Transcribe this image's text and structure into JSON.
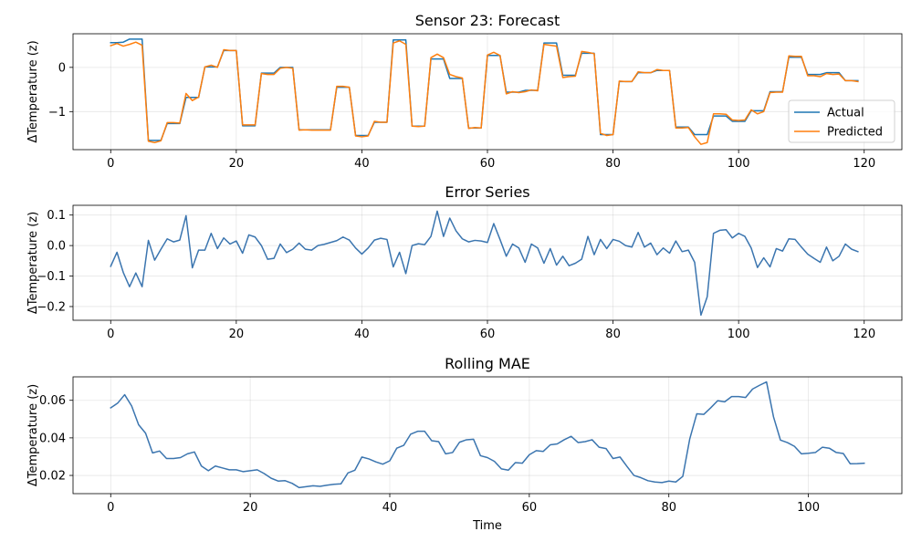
{
  "chart_data": [
    {
      "type": "line",
      "title": "Sensor 23: Forecast",
      "xlabel": "",
      "ylabel": "ΔTemperature (z)",
      "xlim": [
        -6,
        126
      ],
      "ylim": [
        -1.86,
        0.76
      ],
      "xticks": [
        0,
        20,
        40,
        60,
        80,
        100,
        120
      ],
      "yticks": [
        0,
        -1
      ],
      "ytick_labels": [
        "0",
        "−1"
      ],
      "grid": true,
      "legend": "lower-right",
      "series": [
        {
          "name": "Actual",
          "color": "#1f77b4",
          "values": [
            0.56,
            0.56,
            0.57,
            0.64,
            0.64,
            0.64,
            -1.65,
            -1.65,
            -1.65,
            -1.27,
            -1.27,
            -1.27,
            -0.68,
            -0.68,
            -0.68,
            0.01,
            0.01,
            0.01,
            0.38,
            0.38,
            0.38,
            -1.32,
            -1.32,
            -1.32,
            -0.13,
            -0.13,
            -0.13,
            0.0,
            0.0,
            0.0,
            -1.41,
            -1.41,
            -1.41,
            -1.41,
            -1.41,
            -1.41,
            -0.45,
            -0.45,
            -0.45,
            -1.54,
            -1.54,
            -1.54,
            -1.24,
            -1.24,
            -1.24,
            0.62,
            0.62,
            0.62,
            -1.33,
            -1.33,
            -1.33,
            0.19,
            0.19,
            0.19,
            -0.25,
            -0.25,
            -0.25,
            -1.37,
            -1.37,
            -1.37,
            0.27,
            0.27,
            0.27,
            -0.56,
            -0.56,
            -0.56,
            -0.52,
            -0.52,
            -0.52,
            0.55,
            0.55,
            0.55,
            -0.18,
            -0.18,
            -0.18,
            0.32,
            0.32,
            0.32,
            -1.52,
            -1.52,
            -1.52,
            -0.32,
            -0.32,
            -0.32,
            -0.12,
            -0.12,
            -0.12,
            -0.07,
            -0.07,
            -0.07,
            -1.35,
            -1.35,
            -1.35,
            -1.52,
            -1.52,
            -1.52,
            -1.1,
            -1.1,
            -1.1,
            -1.22,
            -1.22,
            -1.22,
            -0.98,
            -0.98,
            -0.98,
            -0.55,
            -0.55,
            -0.55,
            0.23,
            0.23,
            0.23,
            -0.16,
            -0.16,
            -0.16,
            -0.12,
            -0.12,
            -0.12,
            -0.3,
            -0.3,
            -0.3
          ]
        },
        {
          "name": "Predicted",
          "color": "#ff7f0e",
          "values": [
            0.49,
            0.54,
            0.48,
            0.52,
            0.57,
            0.5,
            -1.67,
            -1.7,
            -1.66,
            -1.25,
            -1.25,
            -1.26,
            -0.59,
            -0.75,
            -0.67,
            0.01,
            0.05,
            0.0,
            0.4,
            0.38,
            0.38,
            -1.3,
            -1.3,
            -1.3,
            -0.14,
            -0.16,
            -0.16,
            -0.02,
            0.0,
            -0.02,
            -1.42,
            -1.41,
            -1.42,
            -1.42,
            -1.42,
            -1.42,
            -0.43,
            -0.43,
            -0.45,
            -1.55,
            -1.57,
            -1.55,
            -1.22,
            -1.24,
            -1.24,
            0.55,
            0.6,
            0.52,
            -1.33,
            -1.34,
            -1.33,
            0.22,
            0.3,
            0.22,
            -0.16,
            -0.21,
            -0.24,
            -1.38,
            -1.36,
            -1.37,
            0.28,
            0.34,
            0.27,
            -0.6,
            -0.55,
            -0.57,
            -0.55,
            -0.51,
            -0.53,
            0.52,
            0.5,
            0.48,
            -0.23,
            -0.21,
            -0.2,
            0.36,
            0.34,
            0.31,
            -1.49,
            -1.54,
            -1.52,
            -0.31,
            -0.32,
            -0.32,
            -0.1,
            -0.12,
            -0.12,
            -0.05,
            -0.07,
            -0.07,
            -1.37,
            -1.37,
            -1.36,
            -1.57,
            -1.74,
            -1.7,
            -1.05,
            -1.05,
            -1.06,
            -1.19,
            -1.2,
            -1.19,
            -0.96,
            -1.05,
            -1.0,
            -0.57,
            -0.56,
            -0.56,
            0.26,
            0.25,
            0.25,
            -0.19,
            -0.19,
            -0.21,
            -0.14,
            -0.16,
            -0.15,
            -0.3,
            -0.3,
            -0.32
          ]
        }
      ]
    },
    {
      "type": "line",
      "title": "Error Series",
      "xlabel": "",
      "ylabel": "ΔTemperature (z)",
      "xlim": [
        -6,
        126
      ],
      "ylim": [
        -0.245,
        0.132
      ],
      "xticks": [
        0,
        20,
        40,
        60,
        80,
        100,
        120
      ],
      "yticks": [
        0.1,
        0.0,
        -0.1,
        -0.2
      ],
      "ytick_labels": [
        "0.1",
        "0.0",
        "−0.1",
        "−0.2"
      ],
      "grid": true,
      "series": [
        {
          "color": "#3b75af",
          "values": [
            -0.068,
            -0.022,
            -0.088,
            -0.135,
            -0.09,
            -0.135,
            0.017,
            -0.048,
            -0.012,
            0.022,
            0.012,
            0.018,
            0.098,
            -0.073,
            -0.015,
            -0.015,
            0.04,
            -0.01,
            0.025,
            0.005,
            0.015,
            -0.025,
            0.035,
            0.028,
            0.0,
            -0.045,
            -0.042,
            0.005,
            -0.023,
            -0.012,
            0.008,
            -0.012,
            -0.015,
            0.0,
            0.004,
            0.01,
            0.016,
            0.028,
            0.018,
            -0.008,
            -0.028,
            -0.008,
            0.018,
            0.024,
            0.02,
            -0.07,
            -0.022,
            -0.092,
            0.0,
            0.006,
            0.003,
            0.03,
            0.113,
            0.03,
            0.09,
            0.048,
            0.022,
            0.012,
            0.017,
            0.015,
            0.01,
            0.072,
            0.02,
            -0.035,
            0.005,
            -0.008,
            -0.055,
            0.005,
            -0.008,
            -0.058,
            -0.01,
            -0.064,
            -0.035,
            -0.066,
            -0.058,
            -0.045,
            0.03,
            -0.03,
            0.02,
            -0.01,
            0.02,
            0.014,
            0.0,
            -0.005,
            0.043,
            -0.005,
            0.008,
            -0.03,
            -0.008,
            -0.025,
            0.015,
            -0.02,
            -0.015,
            -0.055,
            -0.228,
            -0.168,
            0.04,
            0.05,
            0.052,
            0.025,
            0.04,
            0.03,
            -0.008,
            -0.072,
            -0.04,
            -0.07,
            -0.01,
            -0.018,
            0.022,
            0.02,
            -0.005,
            -0.028,
            -0.042,
            -0.055,
            -0.005,
            -0.05,
            -0.035,
            0.005,
            -0.012,
            -0.02
          ]
        }
      ]
    },
    {
      "type": "line",
      "title": "Rolling MAE",
      "xlabel": "Time",
      "ylabel": "ΔTemperature (z)",
      "xlim": [
        -5.4,
        113.4
      ],
      "ylim": [
        0.0103,
        0.0725
      ],
      "xticks": [
        0,
        20,
        40,
        60,
        80,
        100
      ],
      "yticks": [
        0.06,
        0.04,
        0.02
      ],
      "ytick_labels": [
        "0.06",
        "0.04",
        "0.02"
      ],
      "grid": true,
      "series": [
        {
          "color": "#3b75af",
          "values": [
            0.056,
            0.0585,
            0.063,
            0.057,
            0.047,
            0.0425,
            0.032,
            0.033,
            0.029,
            0.029,
            0.0295,
            0.0315,
            0.0325,
            0.025,
            0.0225,
            0.025,
            0.024,
            0.023,
            0.023,
            0.022,
            0.0225,
            0.023,
            0.021,
            0.0185,
            0.017,
            0.0172,
            0.0158,
            0.0135,
            0.014,
            0.0145,
            0.0142,
            0.0148,
            0.0153,
            0.0155,
            0.0213,
            0.0228,
            0.0298,
            0.0288,
            0.0272,
            0.026,
            0.0278,
            0.0345,
            0.036,
            0.042,
            0.0435,
            0.0435,
            0.0385,
            0.038,
            0.0315,
            0.0322,
            0.0377,
            0.039,
            0.0393,
            0.0305,
            0.0295,
            0.0275,
            0.0235,
            0.0228,
            0.0268,
            0.0265,
            0.031,
            0.0332,
            0.0328,
            0.0363,
            0.0368,
            0.039,
            0.0408,
            0.0375,
            0.038,
            0.039,
            0.035,
            0.0343,
            0.029,
            0.0298,
            0.0248,
            0.02,
            0.0188,
            0.0172,
            0.0165,
            0.0162,
            0.017,
            0.0165,
            0.0195,
            0.0395,
            0.0528,
            0.0525,
            0.056,
            0.0598,
            0.0592,
            0.062,
            0.062,
            0.0615,
            0.066,
            0.068,
            0.0698,
            0.0512,
            0.0388,
            0.0375,
            0.0355,
            0.0315,
            0.0318,
            0.0322,
            0.035,
            0.0345,
            0.0322,
            0.0317,
            0.0262,
            0.0263,
            0.0265
          ]
        }
      ]
    }
  ]
}
